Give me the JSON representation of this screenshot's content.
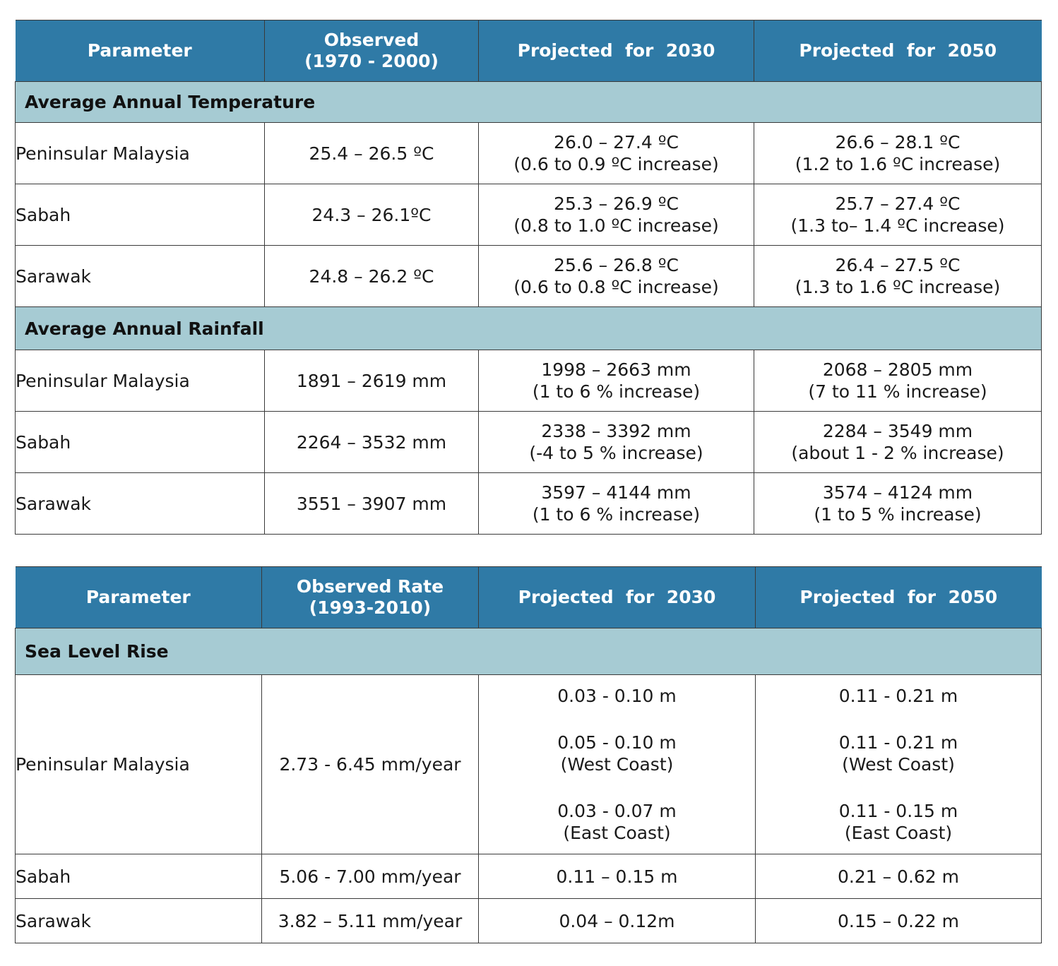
{
  "table1": {
    "headers": [
      "Parameter",
      "Observed",
      "(1970 - 2000)",
      "Projected  for  2030",
      "Projected  for  2050"
    ],
    "temperature": {
      "section": "Average Annual Temperature",
      "rows": [
        {
          "region": "Peninsular Malaysia",
          "observed": "25.4 – 26.5 ºC",
          "p2030_a": "26.0 – 27.4 ºC",
          "p2030_b": "(0.6 to 0.9 ºC increase)",
          "p2050_a": "26.6 – 28.1 ºC",
          "p2050_b": "(1.2 to 1.6 ºC increase)"
        },
        {
          "region": "Sabah",
          "observed": "24.3 – 26.1ºC",
          "p2030_a": "25.3 – 26.9 ºC",
          "p2030_b": "(0.8 to 1.0 ºC increase)",
          "p2050_a": "25.7 – 27.4 ºC",
          "p2050_b": "(1.3 to– 1.4 ºC increase)"
        },
        {
          "region": "Sarawak",
          "observed": "24.8 – 26.2 ºC",
          "p2030_a": "25.6 – 26.8 ºC",
          "p2030_b": "(0.6 to 0.8 ºC increase)",
          "p2050_a": "26.4 – 27.5 ºC",
          "p2050_b": "(1.3 to 1.6 ºC increase)"
        }
      ]
    },
    "rainfall": {
      "section": "Average Annual Rainfall",
      "rows": [
        {
          "region": "Peninsular Malaysia",
          "observed": "1891 – 2619 mm",
          "p2030_a": "1998 – 2663 mm",
          "p2030_b": "(1 to 6 % increase)",
          "p2050_a": "2068 – 2805 mm",
          "p2050_b": "(7 to 11 % increase)"
        },
        {
          "region": "Sabah",
          "observed": "2264 – 3532 mm",
          "p2030_a": "2338 – 3392 mm",
          "p2030_b": "(-4 to 5 % increase)",
          "p2050_a": "2284 – 3549 mm",
          "p2050_b": "(about 1 - 2 % increase)"
        },
        {
          "region": "Sarawak",
          "observed": "3551 – 3907 mm",
          "p2030_a": "3597 – 4144 mm",
          "p2030_b": "(1 to 6 % increase)",
          "p2050_a": "3574 – 4124 mm",
          "p2050_b": "(1 to 5 % increase)"
        }
      ]
    }
  },
  "table2": {
    "headers": [
      "Parameter",
      "Observed Rate",
      "(1993-2010)",
      "Projected  for  2030",
      "Projected  for  2050"
    ],
    "section": "Sea Level Rise",
    "peninsular": {
      "region": "Peninsular Malaysia",
      "observed": "2.73 - 6.45 mm/year",
      "p2030": [
        "0.03 - 0.10 m",
        "0.05 - 0.10 m",
        "(West Coast)",
        "0.03 - 0.07 m",
        "(East Coast)"
      ],
      "p2050": [
        "0.11 - 0.21 m",
        "0.11 - 0.21 m",
        "(West Coast)",
        "0.11 - 0.15 m",
        "(East Coast)"
      ]
    },
    "rows": [
      {
        "region": "Sabah",
        "observed": "5.06 - 7.00 mm/year",
        "p2030": "0.11 – 0.15 m",
        "p2050": "0.21 – 0.62 m"
      },
      {
        "region": "Sarawak",
        "observed": "3.82 – 5.11 mm/year",
        "p2030": "0.04 – 0.12m",
        "p2050": "0.15 – 0.22 m"
      }
    ]
  }
}
